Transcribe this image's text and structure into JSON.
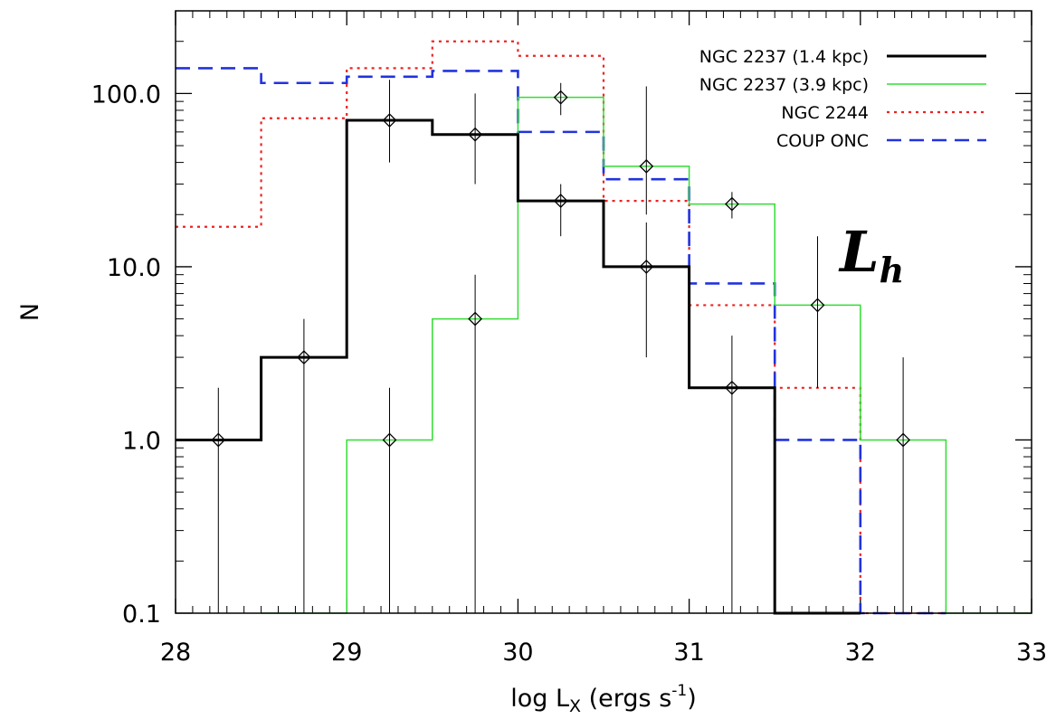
{
  "chart_data": {
    "type": "histogram",
    "xlabel_base": "log L",
    "xlabel_sub": "X",
    "xlabel_mid": " (ergs s",
    "xlabel_sup": "-1",
    "xlabel_end": ")",
    "ylabel": "N",
    "xlim": [
      28,
      33
    ],
    "ylim": [
      0.1,
      300
    ],
    "yscale": "log",
    "x_ticks": [
      28,
      29,
      30,
      31,
      32,
      33
    ],
    "x_tick_labels": [
      "28",
      "29",
      "30",
      "31",
      "32",
      "33"
    ],
    "y_ticks": [
      0.1,
      1,
      10,
      100
    ],
    "y_tick_labels": [
      "0.1",
      "1.0",
      "10.0",
      "100.0"
    ],
    "annotation": {
      "base": "L",
      "sub": "h"
    },
    "legend_position": "top-right",
    "bin_edges": [
      28.0,
      28.5,
      29.0,
      29.5,
      30.0,
      30.5,
      31.0,
      31.5,
      32.0,
      32.5,
      33.0
    ],
    "series": [
      {
        "name": "NGC 2237 (1.4 kpc)",
        "color": "#000000",
        "style": "solid-thick",
        "values": [
          1,
          3,
          70,
          58,
          24,
          10,
          2,
          0.1,
          null,
          null
        ],
        "points": [
          {
            "x": 28.25,
            "y": 1,
            "err_lo": 0.1,
            "err_hi": 2
          },
          {
            "x": 28.75,
            "y": 3,
            "err_lo": 0.1,
            "err_hi": 5
          },
          {
            "x": 29.25,
            "y": 70,
            "err_lo": 40,
            "err_hi": 120
          },
          {
            "x": 29.75,
            "y": 58,
            "err_lo": 30,
            "err_hi": 100
          },
          {
            "x": 30.25,
            "y": 24,
            "err_lo": 15,
            "err_hi": 30
          },
          {
            "x": 30.75,
            "y": 10,
            "err_lo": 3,
            "err_hi": 18
          },
          {
            "x": 31.25,
            "y": 2,
            "err_lo": 0.1,
            "err_hi": 4
          }
        ]
      },
      {
        "name": "NGC 2237 (3.9 kpc)",
        "color": "#33dd33",
        "style": "solid-thin",
        "values": [
          null,
          0.1,
          1,
          5,
          95,
          38,
          23,
          6,
          1,
          0.1
        ],
        "points": [
          {
            "x": 29.25,
            "y": 1,
            "err_lo": 0.1,
            "err_hi": 2
          },
          {
            "x": 29.75,
            "y": 5,
            "err_lo": 0.1,
            "err_hi": 9
          },
          {
            "x": 30.25,
            "y": 95,
            "err_lo": 75,
            "err_hi": 115
          },
          {
            "x": 30.75,
            "y": 38,
            "err_lo": 20,
            "err_hi": 110
          },
          {
            "x": 31.25,
            "y": 23,
            "err_lo": 19,
            "err_hi": 27
          },
          {
            "x": 31.75,
            "y": 6,
            "err_lo": 2,
            "err_hi": 15
          },
          {
            "x": 32.25,
            "y": 1,
            "err_lo": 0.1,
            "err_hi": 3
          }
        ]
      },
      {
        "name": "NGC 2244",
        "color": "#ee2222",
        "style": "dotted",
        "values": [
          17,
          72,
          140,
          200,
          165,
          24,
          6,
          2,
          0.1,
          null
        ],
        "points": []
      },
      {
        "name": "COUP ONC",
        "color": "#2233dd",
        "style": "dashed",
        "values": [
          140,
          115,
          125,
          135,
          60,
          32,
          8,
          1,
          0.1,
          null
        ],
        "points": []
      }
    ]
  }
}
